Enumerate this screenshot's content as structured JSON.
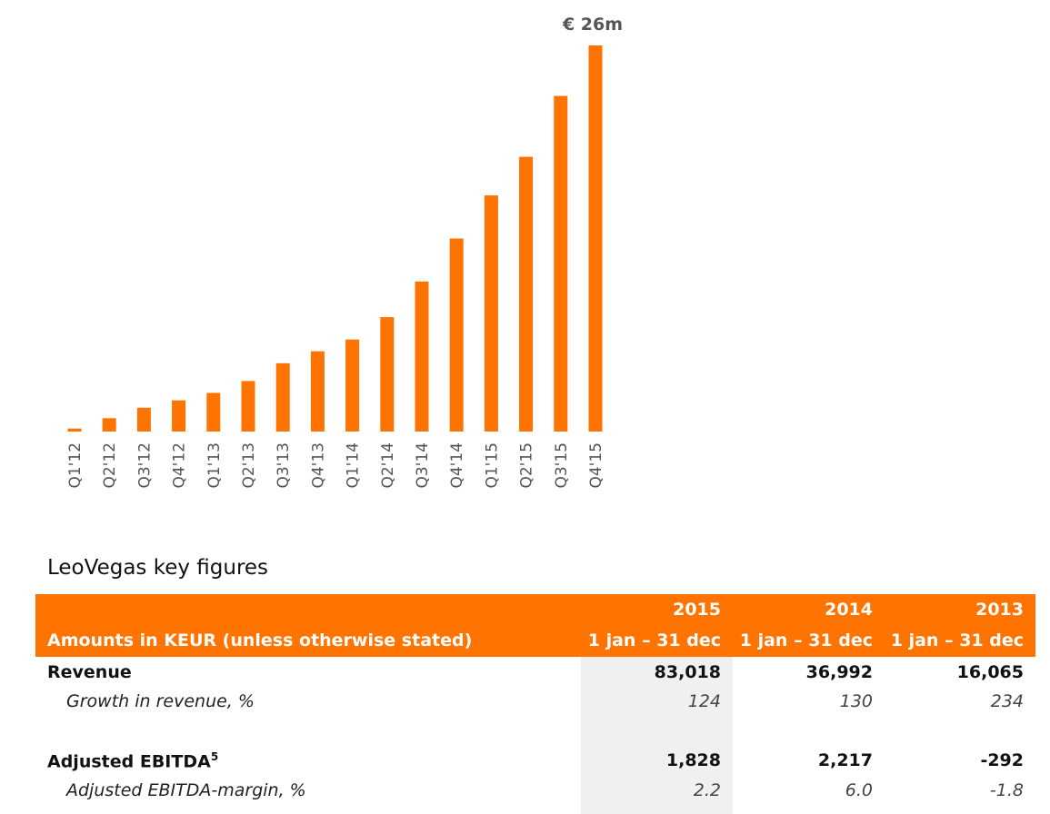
{
  "chart_data": {
    "type": "bar",
    "categories": [
      "Q1'12",
      "Q2'12",
      "Q3'12",
      "Q4'12",
      "Q1'13",
      "Q2'13",
      "Q3'13",
      "Q4'13",
      "Q1'14",
      "Q2'14",
      "Q3'14",
      "Q4'14",
      "Q1'15",
      "Q2'15",
      "Q3'15",
      "Q4'15"
    ],
    "values": [
      0.2,
      0.9,
      1.6,
      2.1,
      2.6,
      3.4,
      4.6,
      5.4,
      6.2,
      7.7,
      10.1,
      13.0,
      15.9,
      18.5,
      22.6,
      26.0
    ],
    "ylim": [
      0,
      26
    ],
    "annotation": "€ 26m",
    "color": "#ff7300"
  },
  "table": {
    "title": "LeoVegas key figures",
    "header": {
      "label": "Amounts in KEUR (unless otherwise stated)",
      "years": [
        "2015",
        "2014",
        "2013"
      ],
      "periods": [
        "1 jan – 31 dec",
        "1 jan – 31 dec",
        "1 jan – 31 dec"
      ]
    },
    "rows": [
      {
        "label": "Revenue",
        "values": [
          "83,018",
          "36,992",
          "16,065"
        ]
      },
      {
        "label": "Growth in revenue, %",
        "values": [
          "124",
          "130",
          "234"
        ]
      },
      {
        "label": "Adjusted EBITDA",
        "sup": "5",
        "values": [
          "1,828",
          "2,217",
          "-292"
        ]
      },
      {
        "label": "Adjusted EBITDA-margin, %",
        "values": [
          "2.2",
          "6.0",
          "-1.8"
        ]
      }
    ]
  }
}
